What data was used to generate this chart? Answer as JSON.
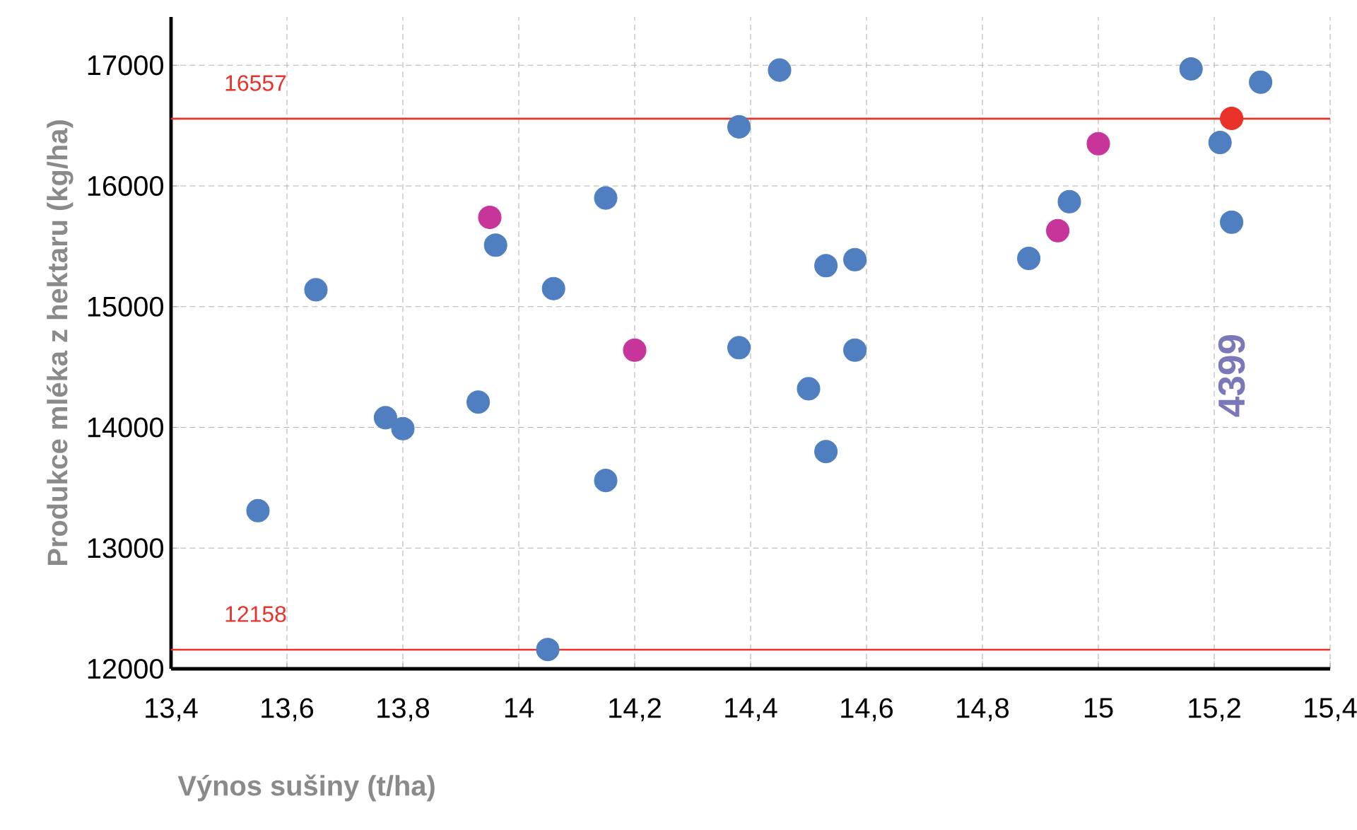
{
  "chart_data": {
    "type": "scatter",
    "xlabel": "Výnos sušiny (t/ha)",
    "ylabel": "Produkce mléka z hektaru (kg/ha)",
    "xlim": [
      13.4,
      15.4
    ],
    "ylim": [
      12000,
      17400
    ],
    "xticks": [
      {
        "value": 13.4,
        "label": "13,4"
      },
      {
        "value": 13.6,
        "label": "13,6"
      },
      {
        "value": 13.8,
        "label": "13,8"
      },
      14,
      {
        "value": 14.2,
        "label": "14,2"
      },
      {
        "value": 14.4,
        "label": "14,4"
      },
      {
        "value": 14.6,
        "label": "14,6"
      },
      {
        "value": 14.8,
        "label": "14,8"
      },
      15,
      {
        "value": 15.2,
        "label": "15,2"
      },
      {
        "value": 15.4,
        "label": "15,4"
      }
    ],
    "yticks": [
      12000,
      13000,
      14000,
      15000,
      16000,
      17000
    ],
    "grid": true,
    "marker": "circle",
    "series": [
      {
        "color": "#4f7fc0",
        "x": [
          13.55,
          13.65,
          13.77,
          13.8,
          13.93,
          13.96,
          14.05,
          14.06,
          14.15,
          14.15,
          14.38,
          14.38,
          14.45,
          14.5,
          14.53,
          14.53,
          14.58,
          14.58,
          14.88,
          14.95,
          15.16,
          15.21,
          15.23,
          15.28
        ],
        "values": [
          13310,
          15140,
          14080,
          13990,
          14210,
          15510,
          12160,
          15150,
          15900,
          13560,
          16490,
          14660,
          16960,
          14320,
          15340,
          13800,
          15390,
          14640,
          15400,
          15870,
          16970,
          16360,
          15700,
          16860
        ]
      },
      {
        "color": "#c8359a",
        "x": [
          13.95,
          14.2,
          14.93,
          15.0
        ],
        "values": [
          15740,
          14640,
          15630,
          16350
        ]
      },
      {
        "color": "#e8322a",
        "x": [
          15.23
        ],
        "values": [
          16560
        ]
      }
    ],
    "ref_lines": [
      {
        "axis": "y",
        "value": 16557,
        "label": "16557",
        "color": "#e8322a"
      },
      {
        "axis": "y",
        "value": 12158,
        "label": "12158",
        "color": "#e8322a"
      }
    ],
    "annotations": [
      "4399"
    ]
  }
}
